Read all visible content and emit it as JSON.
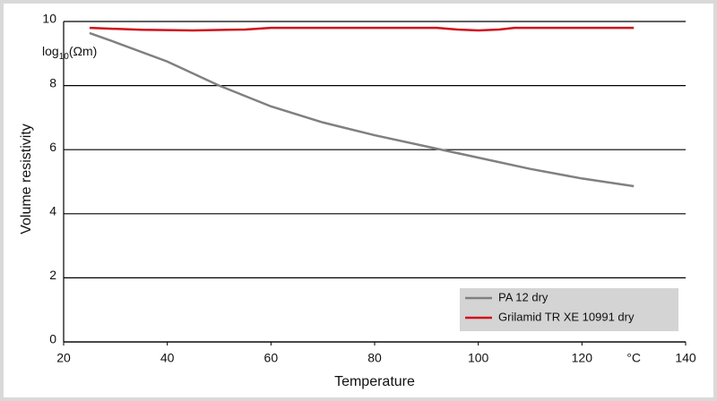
{
  "chart_data": {
    "type": "line",
    "x_label": "Temperature",
    "y_label": "Volume resistivity",
    "y_unit": [
      "log",
      "10",
      "(Ωm)"
    ],
    "x_unit": "°C",
    "x_unit_at": 130,
    "xlim": [
      20,
      140
    ],
    "xticks": [
      20,
      40,
      60,
      80,
      100,
      120,
      140
    ],
    "ylim": [
      0,
      10
    ],
    "yticks": [
      0,
      2,
      4,
      6,
      8,
      10
    ],
    "grid": true,
    "legend": "lower right",
    "series": [
      {
        "name": "PA 12 dry",
        "color": "#808080",
        "x": [
          25,
          30,
          40,
          50,
          60,
          70,
          80,
          90,
          100,
          110,
          120,
          130
        ],
        "values": [
          9.64,
          9.35,
          8.75,
          8.0,
          7.35,
          6.85,
          6.45,
          6.1,
          5.75,
          5.4,
          5.1,
          4.86
        ]
      },
      {
        "name": "Grilamid TR XE 10991 dry",
        "color": "#d0101a",
        "x": [
          25,
          35,
          45,
          55,
          60,
          92,
          96,
          100,
          104,
          107,
          130
        ],
        "values": [
          9.8,
          9.74,
          9.72,
          9.75,
          9.8,
          9.8,
          9.75,
          9.72,
          9.75,
          9.8,
          9.8
        ]
      }
    ]
  }
}
